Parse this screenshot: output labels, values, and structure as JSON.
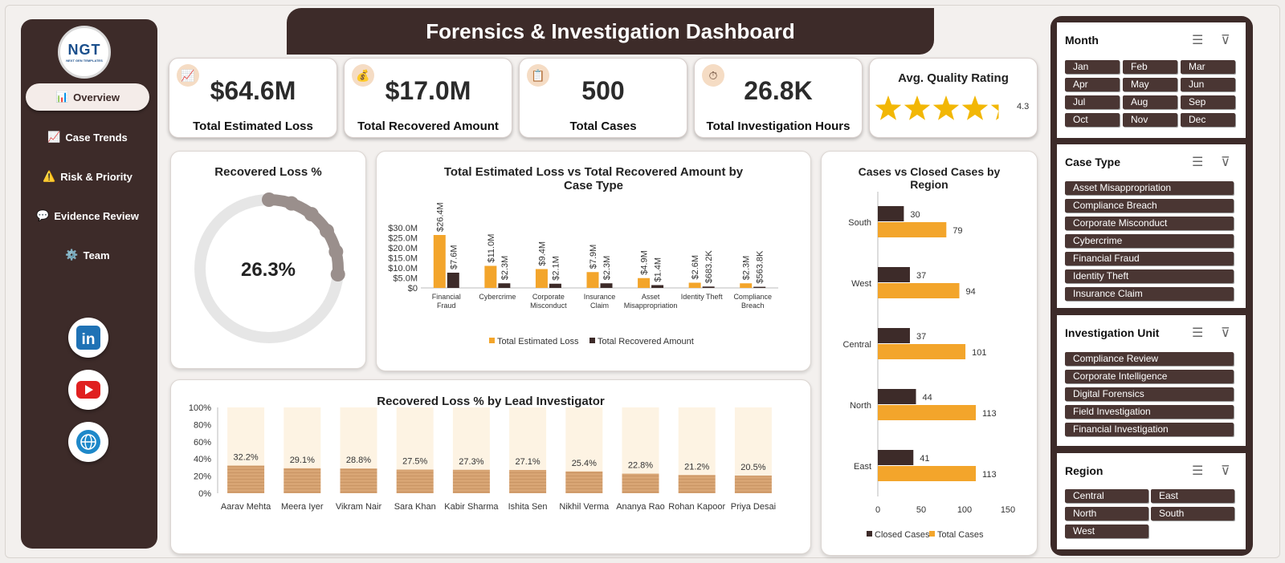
{
  "title": "Forensics & Investigation Dashboard",
  "logo": {
    "mark": "NGT",
    "sub": "NEXT GEN TEMPLATES"
  },
  "nav": [
    {
      "label": "Overview",
      "icon": "bar-chart-icon",
      "active": true
    },
    {
      "label": "Case Trends",
      "icon": "trend-chart-icon"
    },
    {
      "label": "Risk & Priority",
      "icon": "warning-icon"
    },
    {
      "label": "Evidence Review",
      "icon": "speech-bubble-icon"
    },
    {
      "label": "Team",
      "icon": "gear-icon"
    }
  ],
  "social": [
    "linkedin-icon",
    "youtube-icon",
    "globe-icon"
  ],
  "kpis": [
    {
      "value": "$64.6M",
      "label": "Total Estimated Loss",
      "icon": "trend-chart-icon"
    },
    {
      "value": "$17.0M",
      "label": "Total Recovered Amount",
      "icon": "money-bag-icon"
    },
    {
      "value": "500",
      "label": "Total Cases",
      "icon": "clipboard-icon"
    },
    {
      "value": "26.8K",
      "label": "Total Investigation Hours",
      "icon": "stopwatch-icon"
    }
  ],
  "quality": {
    "label": "Avg. Quality Rating",
    "value": "4.3",
    "rating": 4.3,
    "max": 5
  },
  "donut": {
    "title": "Recovered Loss %",
    "value": "26.3%",
    "fraction": 0.263,
    "colors": {
      "track": "#e6e6e6",
      "fill": "#9a8f8c"
    }
  },
  "bar_chart": {
    "title": "Total Estimated Loss vs Total Recovered Amount by Case Type"
  },
  "region_chart": {
    "title": "Cases vs Closed Cases by Region"
  },
  "investigator_chart": {
    "title": "Recovered Loss % by Lead Investigator"
  },
  "colors": {
    "dark": "#3d2b29",
    "orange": "#f3a52b",
    "bar_bg": "#fdf3e3",
    "bar_fill": "#d8a574"
  },
  "chart_data": [
    {
      "type": "bar",
      "title": "Total Estimated Loss vs Total Recovered Amount by Case Type",
      "categories": [
        "Financial Fraud",
        "Cybercrime",
        "Corporate Misconduct",
        "Insurance Claim",
        "Asset Misappropriation",
        "Identity Theft",
        "Compliance Breach"
      ],
      "series": [
        {
          "name": "Total Estimated Loss",
          "values": [
            26.4,
            11.0,
            9.4,
            7.9,
            4.9,
            2.6,
            2.3
          ],
          "labels": [
            "$26.4M",
            "$11.0M",
            "$9.4M",
            "$7.9M",
            "$4.9M",
            "$2.6M",
            "$2.3M"
          ]
        },
        {
          "name": "Total Recovered Amount",
          "values": [
            7.6,
            2.3,
            2.1,
            2.3,
            1.4,
            0.683,
            0.564
          ],
          "labels": [
            "$7.6M",
            "$2.3M",
            "$2.1M",
            "$2.3M",
            "$1.4M",
            "$683.2K",
            "$563.8K"
          ]
        }
      ],
      "yticks": [
        "$0",
        "$5.0M",
        "$10.0M",
        "$15.0M",
        "$20.0M",
        "$25.0M",
        "$30.0M"
      ],
      "ylim": [
        0,
        30
      ],
      "legend": "bottom"
    },
    {
      "type": "bar",
      "orientation": "horizontal",
      "title": "Cases vs Closed Cases by Region",
      "categories": [
        "South",
        "West",
        "Central",
        "North",
        "East"
      ],
      "series": [
        {
          "name": "Closed Cases",
          "values": [
            30,
            37,
            37,
            44,
            41
          ]
        },
        {
          "name": "Total Cases",
          "values": [
            79,
            94,
            101,
            113,
            113
          ]
        }
      ],
      "xticks": [
        "0",
        "50",
        "100",
        "150"
      ],
      "xlim": [
        0,
        150
      ],
      "legend": "bottom"
    },
    {
      "type": "bar",
      "title": "Recovered Loss % by Lead Investigator",
      "categories": [
        "Aarav Mehta",
        "Meera Iyer",
        "Vikram Nair",
        "Sara Khan",
        "Kabir Sharma",
        "Ishita Sen",
        "Nikhil Verma",
        "Ananya Rao",
        "Rohan Kapoor",
        "Priya Desai"
      ],
      "values": [
        32.2,
        29.1,
        28.8,
        27.5,
        27.3,
        27.1,
        25.4,
        22.8,
        21.2,
        20.5
      ],
      "labels": [
        "32.2%",
        "29.1%",
        "28.8%",
        "27.5%",
        "27.3%",
        "27.1%",
        "25.4%",
        "22.8%",
        "21.2%",
        "20.5%"
      ],
      "yticks": [
        "0%",
        "20%",
        "40%",
        "60%",
        "80%",
        "100%"
      ],
      "ylim": [
        0,
        100
      ]
    }
  ],
  "slicers": {
    "month": {
      "title": "Month",
      "items": [
        "Jan",
        "Feb",
        "Mar",
        "Apr",
        "May",
        "Jun",
        "Jul",
        "Aug",
        "Sep",
        "Oct",
        "Nov",
        "Dec"
      ]
    },
    "case_type": {
      "title": "Case Type",
      "items": [
        "Asset Misappropriation",
        "Compliance Breach",
        "Corporate Misconduct",
        "Cybercrime",
        "Financial Fraud",
        "Identity Theft",
        "Insurance Claim"
      ]
    },
    "unit": {
      "title": "Investigation Unit",
      "items": [
        "Compliance Review",
        "Corporate Intelligence",
        "Digital Forensics",
        "Field Investigation",
        "Financial Investigation"
      ]
    },
    "region": {
      "title": "Region",
      "items": [
        "Central",
        "East",
        "North",
        "South",
        "West"
      ]
    }
  }
}
